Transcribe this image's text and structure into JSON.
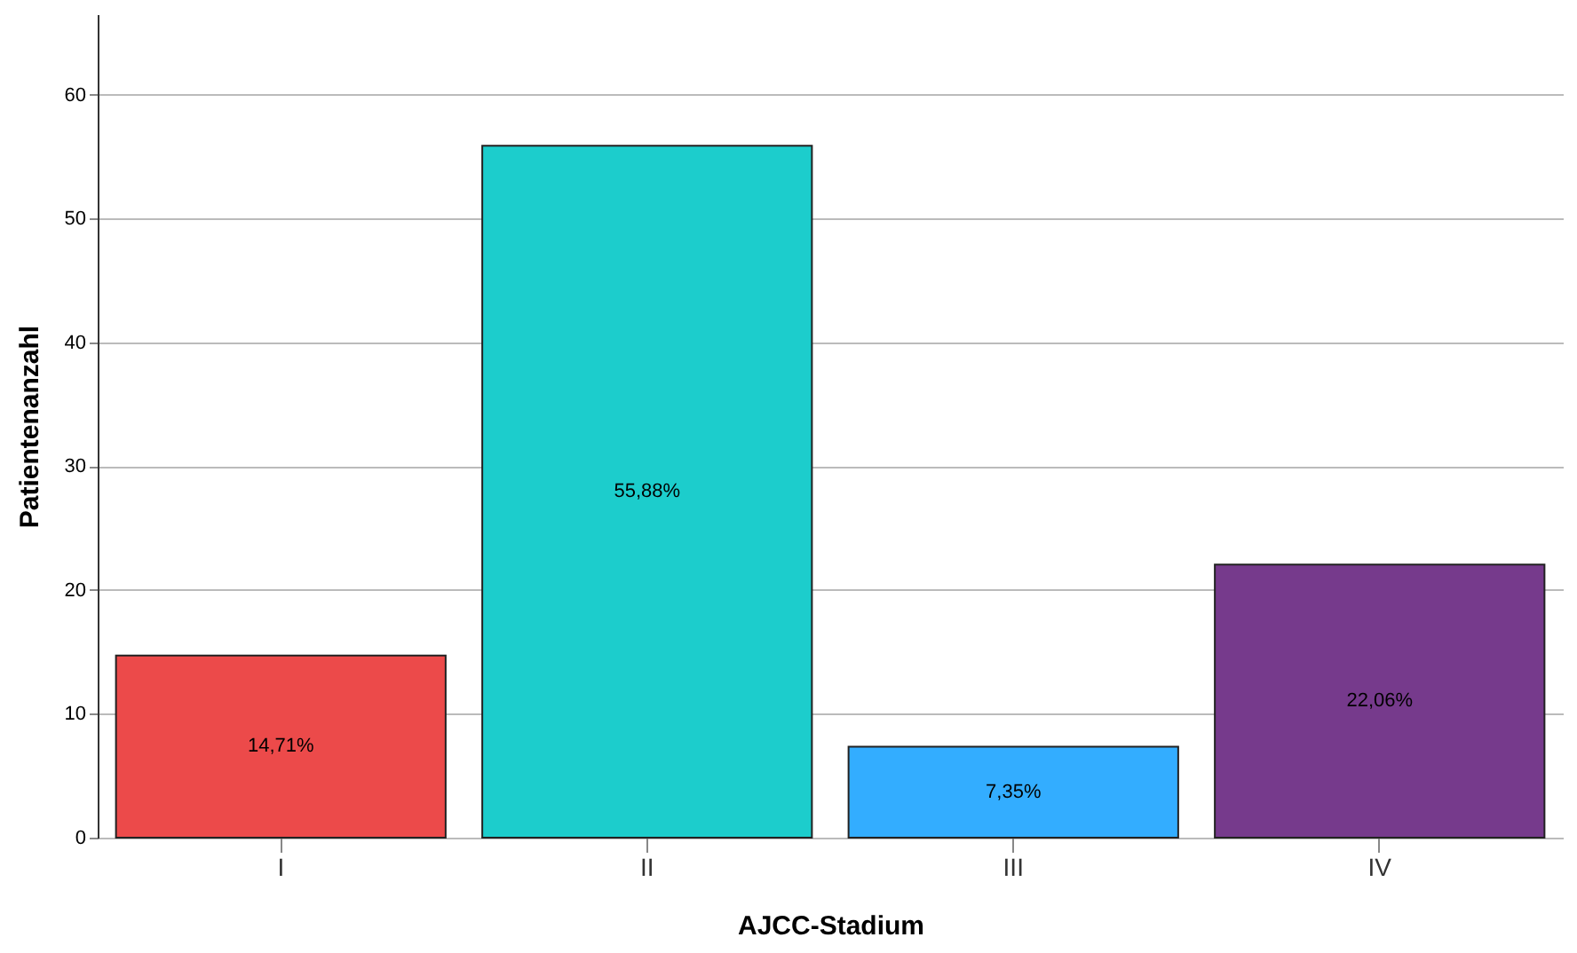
{
  "chart_data": {
    "type": "bar",
    "xlabel": "AJCC-Stadium",
    "ylabel": "Patientenanzahl",
    "categories": [
      "I",
      "II",
      "III",
      "IV"
    ],
    "values": [
      14.71,
      55.88,
      7.35,
      22.06
    ],
    "colors": [
      "#ec4a4a",
      "#1ccdcc",
      "#33adff",
      "#763a8c"
    ],
    "value_labels": [
      "14,71%",
      "55,88%",
      "7,35%",
      "22,06%"
    ],
    "ylim": [
      0,
      66.5
    ],
    "yticks": [
      0,
      10,
      20,
      30,
      40,
      50,
      60
    ],
    "grid": "y"
  }
}
